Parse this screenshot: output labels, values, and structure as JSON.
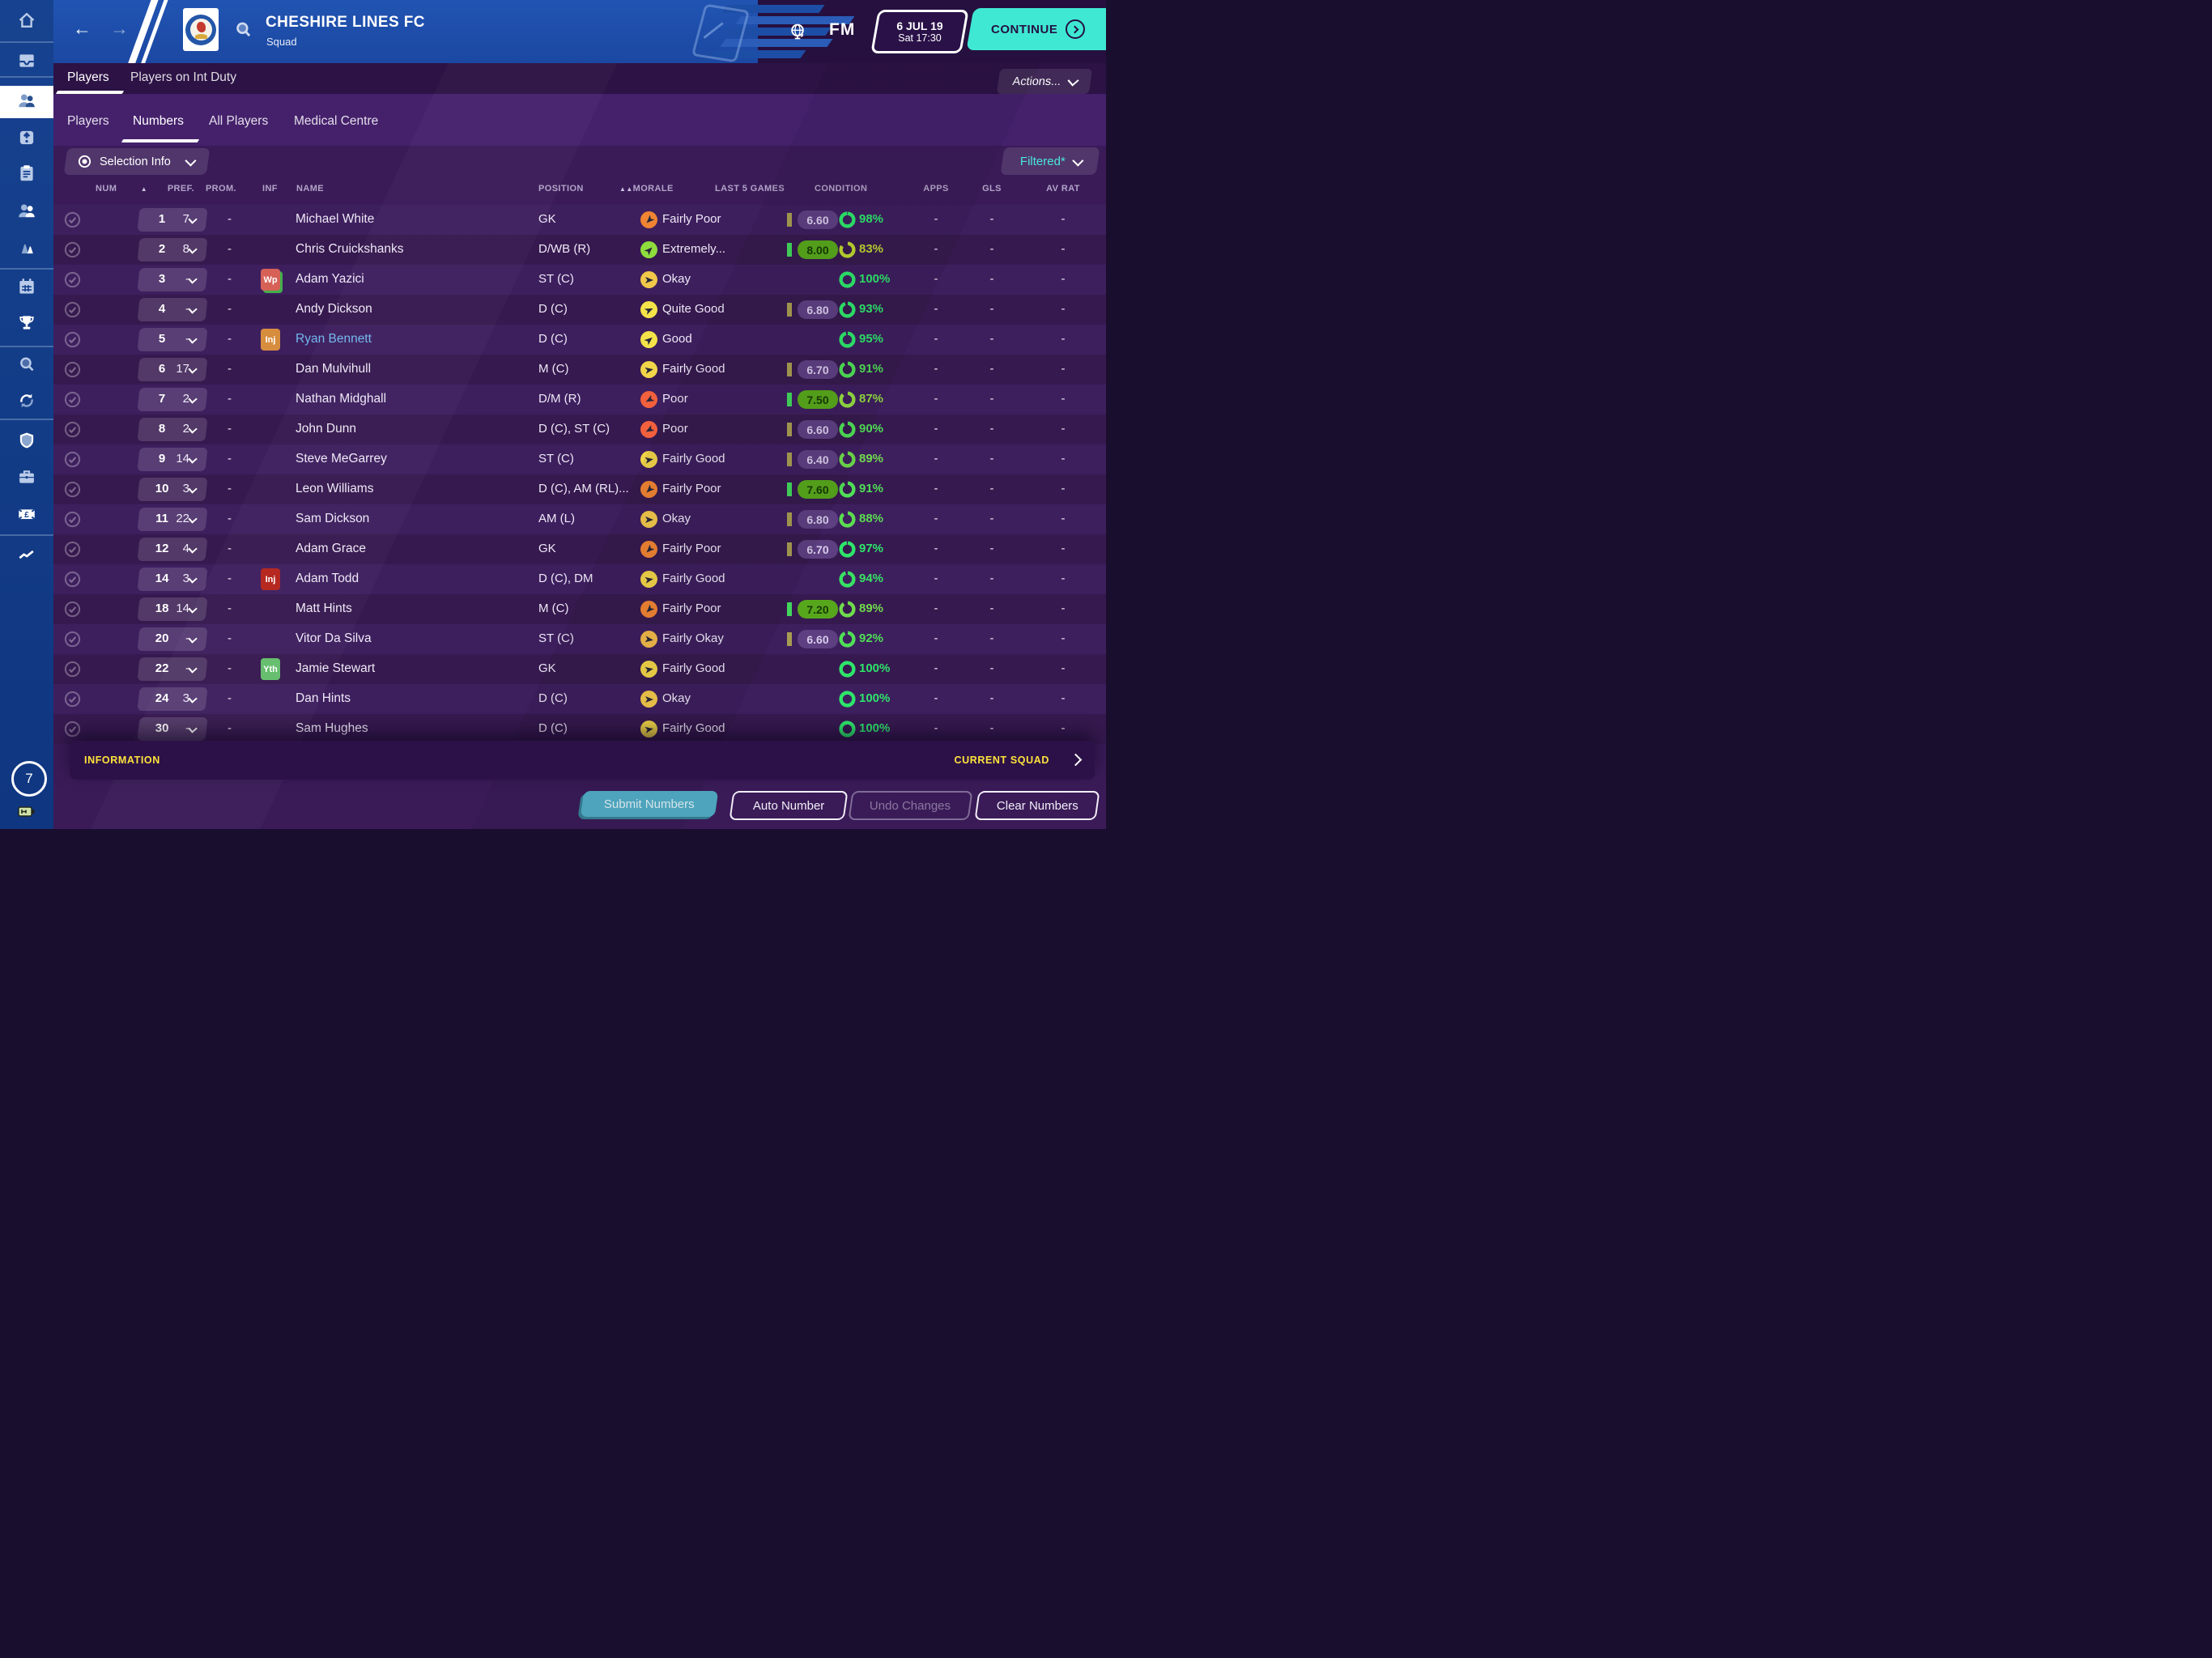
{
  "app": {
    "accent_teal": "#3fe8d2",
    "accent_yellow": "#ffe33c"
  },
  "sidebar": {
    "items": [
      {
        "icon": "home",
        "selected": false
      },
      {
        "icon": "inbox",
        "selected": false
      },
      {
        "icon": "squad",
        "selected": true
      },
      {
        "icon": "promotion",
        "selected": false
      },
      {
        "icon": "notes",
        "selected": false
      },
      {
        "icon": "staff",
        "selected": false
      },
      {
        "icon": "training",
        "selected": false
      },
      {
        "icon": "calendar",
        "selected": false
      },
      {
        "icon": "trophy",
        "selected": false
      },
      {
        "icon": "search",
        "selected": false
      },
      {
        "icon": "transfers",
        "selected": false
      },
      {
        "icon": "shield",
        "selected": false
      },
      {
        "icon": "briefcase",
        "selected": false
      },
      {
        "icon": "finances",
        "selected": false
      },
      {
        "icon": "stats",
        "selected": false
      }
    ],
    "notification_count": "7"
  },
  "header": {
    "club_name": "CHESHIRE LINES FC",
    "section": "Squad",
    "fm_logo": "FM",
    "date_top": "6 JUL 19",
    "date_bottom": "Sat 17:30",
    "continue_label": "CONTINUE"
  },
  "tabs_primary": {
    "items": [
      {
        "label": "Players",
        "active": true
      },
      {
        "label": "Players on Int Duty",
        "active": false
      }
    ],
    "actions_label": "Actions..."
  },
  "tabs_secondary": {
    "items": [
      {
        "label": "Players",
        "active": false
      },
      {
        "label": "Numbers",
        "active": true
      },
      {
        "label": "All Players",
        "active": false
      },
      {
        "label": "Medical Centre",
        "active": false
      }
    ]
  },
  "toolbar": {
    "selection_info_label": "Selection Info",
    "filter_label": "Filtered*"
  },
  "table": {
    "columns": [
      {
        "key": "num",
        "label": "NUM",
        "sort": "▲"
      },
      {
        "key": "pref",
        "label": "PREF."
      },
      {
        "key": "prom",
        "label": "PROM."
      },
      {
        "key": "inf",
        "label": "INF"
      },
      {
        "key": "name",
        "label": "NAME"
      },
      {
        "key": "pos",
        "label": "POSITION"
      },
      {
        "key": "morale",
        "label": "MORALE",
        "sort": "▲▲"
      },
      {
        "key": "last5",
        "label": "LAST 5 GAMES"
      },
      {
        "key": "cond",
        "label": "CONDITION"
      },
      {
        "key": "apps",
        "label": "APPS"
      },
      {
        "key": "gls",
        "label": "GLS"
      },
      {
        "key": "avrat",
        "label": "AV RAT"
      }
    ],
    "rows": [
      {
        "num": "1",
        "pref": "7",
        "prom": "-",
        "badge": null,
        "name": "Michael White",
        "pos": "GK",
        "morale": {
          "label": "Fairly Poor",
          "color": "#ef8433",
          "rot": 135
        },
        "last5": {
          "rating": "6.60",
          "style": "purple"
        },
        "condition": {
          "pct": 98,
          "label": "98%",
          "color": "#2ee56a"
        },
        "apps": "-",
        "gls": "-",
        "avrat": "-"
      },
      {
        "num": "2",
        "pref": "8",
        "prom": "-",
        "badge": null,
        "name": "Chris Cruickshanks",
        "pos": "D/WB (R)",
        "morale": {
          "label": "Extremely...",
          "color": "#8fdd3d",
          "rot": -45
        },
        "last5": {
          "rating": "8.00",
          "style": "green"
        },
        "condition": {
          "pct": 83,
          "label": "83%",
          "color": "#bcd430"
        },
        "apps": "-",
        "gls": "-",
        "avrat": "-"
      },
      {
        "num": "3",
        "pref": "-",
        "prom": "-",
        "badge": {
          "text": "Wp",
          "type": "wp"
        },
        "name": "Adam Yazici",
        "pos": "ST (C)",
        "morale": {
          "label": "Okay",
          "color": "#f2c84b",
          "rot": 0
        },
        "last5": null,
        "condition": {
          "pct": 100,
          "label": "100%",
          "color": "#2ee56a"
        },
        "apps": "-",
        "gls": "-",
        "avrat": "-"
      },
      {
        "num": "4",
        "pref": "-",
        "prom": "-",
        "badge": null,
        "name": "Andy Dickson",
        "pos": "D (C)",
        "morale": {
          "label": "Quite Good",
          "color": "#f5e449",
          "rot": -25
        },
        "last5": {
          "rating": "6.80",
          "style": "purple"
        },
        "condition": {
          "pct": 93,
          "label": "93%",
          "color": "#2ee56a"
        },
        "apps": "-",
        "gls": "-",
        "avrat": "-"
      },
      {
        "num": "5",
        "pref": "-",
        "prom": "-",
        "badge": {
          "text": "Inj",
          "type": "inj-orange"
        },
        "name": "Ryan Bennett",
        "name_color": "#72b7ee",
        "pos": "D (C)",
        "morale": {
          "label": "Good",
          "color": "#f5e449",
          "rot": -40
        },
        "last5": null,
        "condition": {
          "pct": 95,
          "label": "95%",
          "color": "#2ee56a"
        },
        "apps": "-",
        "gls": "-",
        "avrat": "-"
      },
      {
        "num": "6",
        "pref": "17",
        "prom": "-",
        "badge": null,
        "name": "Dan Mulvihull",
        "pos": "M (C)",
        "morale": {
          "label": "Fairly Good",
          "color": "#f2d549",
          "rot": -10
        },
        "last5": {
          "rating": "6.70",
          "style": "purple"
        },
        "condition": {
          "pct": 91,
          "label": "91%",
          "color": "#4fdf56"
        },
        "apps": "-",
        "gls": "-",
        "avrat": "-"
      },
      {
        "num": "7",
        "pref": "2",
        "prom": "-",
        "badge": null,
        "name": "Nathan Midghall",
        "pos": "D/M (R)",
        "morale": {
          "label": "Poor",
          "color": "#f2603d",
          "rot": 150
        },
        "last5": {
          "rating": "7.50",
          "style": "green"
        },
        "condition": {
          "pct": 87,
          "label": "87%",
          "color": "#93dc42"
        },
        "apps": "-",
        "gls": "-",
        "avrat": "-"
      },
      {
        "num": "8",
        "pref": "2",
        "prom": "-",
        "badge": null,
        "name": "John Dunn",
        "pos": "D (C), ST (C)",
        "morale": {
          "label": "Poor",
          "color": "#f2603d",
          "rot": 150
        },
        "last5": {
          "rating": "6.60",
          "style": "purple"
        },
        "condition": {
          "pct": 90,
          "label": "90%",
          "color": "#4fdf56"
        },
        "apps": "-",
        "gls": "-",
        "avrat": "-"
      },
      {
        "num": "9",
        "pref": "14",
        "prom": "-",
        "badge": null,
        "name": "Steve MeGarrey",
        "pos": "ST (C)",
        "morale": {
          "label": "Fairly Good",
          "color": "#f2d549",
          "rot": -10
        },
        "last5": {
          "rating": "6.40",
          "style": "purple"
        },
        "condition": {
          "pct": 89,
          "label": "89%",
          "color": "#6fdc4c"
        },
        "apps": "-",
        "gls": "-",
        "avrat": "-"
      },
      {
        "num": "10",
        "pref": "3",
        "prom": "-",
        "badge": null,
        "name": "Leon Williams",
        "pos": "D (C), AM (RL)...",
        "morale": {
          "label": "Fairly Poor",
          "color": "#ef8433",
          "rot": 135
        },
        "last5": {
          "rating": "7.60",
          "style": "green"
        },
        "condition": {
          "pct": 91,
          "label": "91%",
          "color": "#4fdf56"
        },
        "apps": "-",
        "gls": "-",
        "avrat": "-"
      },
      {
        "num": "11",
        "pref": "22",
        "prom": "-",
        "badge": null,
        "name": "Sam Dickson",
        "pos": "AM (L)",
        "morale": {
          "label": "Okay",
          "color": "#f2c84b",
          "rot": 0
        },
        "last5": {
          "rating": "6.80",
          "style": "purple"
        },
        "condition": {
          "pct": 88,
          "label": "88%",
          "color": "#5bdd50"
        },
        "apps": "-",
        "gls": "-",
        "avrat": "-"
      },
      {
        "num": "12",
        "pref": "4",
        "prom": "-",
        "badge": null,
        "name": "Adam Grace",
        "pos": "GK",
        "morale": {
          "label": "Fairly Poor",
          "color": "#ef8433",
          "rot": 135
        },
        "last5": {
          "rating": "6.70",
          "style": "purple"
        },
        "condition": {
          "pct": 97,
          "label": "97%",
          "color": "#2ee56a"
        },
        "apps": "-",
        "gls": "-",
        "avrat": "-"
      },
      {
        "num": "14",
        "pref": "3",
        "prom": "-",
        "badge": {
          "text": "Inj",
          "type": "inj-red"
        },
        "name": "Adam Todd",
        "pos": "D (C), DM",
        "morale": {
          "label": "Fairly Good",
          "color": "#f2d549",
          "rot": -10
        },
        "last5": null,
        "condition": {
          "pct": 94,
          "label": "94%",
          "color": "#38e263"
        },
        "apps": "-",
        "gls": "-",
        "avrat": "-"
      },
      {
        "num": "18",
        "pref": "14",
        "prom": "-",
        "badge": null,
        "name": "Matt Hints",
        "pos": "M (C)",
        "morale": {
          "label": "Fairly Poor",
          "color": "#ef8433",
          "rot": 135
        },
        "last5": {
          "rating": "7.20",
          "style": "green"
        },
        "condition": {
          "pct": 89,
          "label": "89%",
          "color": "#6fdc4c"
        },
        "apps": "-",
        "gls": "-",
        "avrat": "-"
      },
      {
        "num": "20",
        "pref": "-",
        "prom": "-",
        "badge": null,
        "name": "Vitor Da Silva",
        "pos": "ST (C)",
        "morale": {
          "label": "Fairly Okay",
          "color": "#f2b94b",
          "rot": 8
        },
        "last5": {
          "rating": "6.60",
          "style": "purple"
        },
        "condition": {
          "pct": 92,
          "label": "92%",
          "color": "#4fdf56"
        },
        "apps": "-",
        "gls": "-",
        "avrat": "-"
      },
      {
        "num": "22",
        "pref": "-",
        "prom": "-",
        "badge": {
          "text": "Yth",
          "type": "yth"
        },
        "name": "Jamie Stewart",
        "pos": "GK",
        "morale": {
          "label": "Fairly Good",
          "color": "#f2d549",
          "rot": -10
        },
        "last5": null,
        "condition": {
          "pct": 100,
          "label": "100%",
          "color": "#2ee56a"
        },
        "apps": "-",
        "gls": "-",
        "avrat": "-"
      },
      {
        "num": "24",
        "pref": "3",
        "prom": "-",
        "badge": null,
        "name": "Dan Hints",
        "pos": "D (C)",
        "morale": {
          "label": "Okay",
          "color": "#f2c84b",
          "rot": 0
        },
        "last5": null,
        "condition": {
          "pct": 100,
          "label": "100%",
          "color": "#2ee56a"
        },
        "apps": "-",
        "gls": "-",
        "avrat": "-"
      },
      {
        "num": "30",
        "pref": "-",
        "prom": "-",
        "badge": null,
        "name": "Sam Hughes",
        "pos": "D (C)",
        "morale": {
          "label": "Fairly Good",
          "color": "#f2d549",
          "rot": -10
        },
        "last5": null,
        "condition": {
          "pct": 100,
          "label": "100%",
          "color": "#2ee56a"
        },
        "apps": "-",
        "gls": "-",
        "avrat": "-"
      }
    ]
  },
  "footer": {
    "information_label": "INFORMATION",
    "current_squad_label": "CURRENT SQUAD",
    "buttons": [
      {
        "label": "Submit Numbers",
        "style": "primary"
      },
      {
        "label": "Auto Number",
        "style": "outline"
      },
      {
        "label": "Undo Changes",
        "style": "disabled"
      },
      {
        "label": "Clear Numbers",
        "style": "outline"
      }
    ]
  }
}
